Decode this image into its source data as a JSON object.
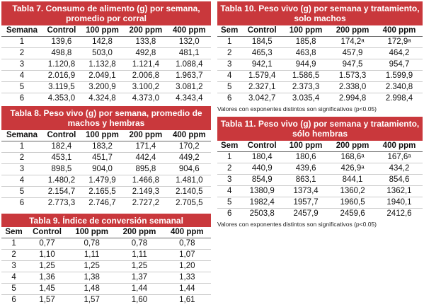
{
  "tables": [
    {
      "title": [
        "Tabla 7. Consumo de alimento (g) por semana,",
        "promedio por corral"
      ],
      "headers": [
        "Semana",
        "Control",
        "100 ppm",
        "200 ppm",
        "400 ppm"
      ],
      "rows": [
        [
          "1",
          "139,6",
          "142,8",
          "133,8",
          "132,0"
        ],
        [
          "2",
          "498,8",
          "503,0",
          "492,8",
          "481,1"
        ],
        [
          "3",
          "1.120,8",
          "1.132,8",
          "1.121,4",
          "1.088,4"
        ],
        [
          "4",
          "2.016,9",
          "2.049,1",
          "2.006,8",
          "1.963,7"
        ],
        [
          "5",
          "3.119,5",
          "3.200,9",
          "3.100,2",
          "3.081,2"
        ],
        [
          "6",
          "4.353,0",
          "4.324,8",
          "4.373,0",
          "4.343,4"
        ]
      ]
    },
    {
      "title": [
        "Tabla 8. Peso vivo (g) por semana, promedio de",
        "machos y hembras"
      ],
      "headers": [
        "Semana",
        "Control",
        "100 ppm",
        "200 ppm",
        "400 ppm"
      ],
      "rows": [
        [
          "1",
          "182,4",
          "183,2",
          "171,4",
          "170,2"
        ],
        [
          "2",
          "453,1",
          "451,7",
          "442,4",
          "449,2"
        ],
        [
          "3",
          "898,5",
          "904,0",
          "895,8",
          "904,6"
        ],
        [
          "4",
          "1.480,2",
          "1.479,9",
          "1.466,8",
          "1.481,0"
        ],
        [
          "5",
          "2.154,7",
          "2.165,5",
          "2.149,3",
          "2.140,5"
        ],
        [
          "6",
          "2.773,3",
          "2.746,7",
          "2.727,2",
          "2.705,5"
        ]
      ]
    },
    {
      "title": [
        "Tabla 9. Índice de conversión semanal"
      ],
      "headers": [
        "Sem",
        "Control",
        "100 ppm",
        "200 ppm",
        "400 ppm"
      ],
      "rows": [
        [
          "1",
          "0,77",
          "0,78",
          "0,78",
          "0,78"
        ],
        [
          "2",
          "1,10",
          "1,11",
          "1,11",
          "1,07"
        ],
        [
          "3",
          "1,25",
          "1,25",
          "1,25",
          "1,20"
        ],
        [
          "4",
          "1,36",
          "1,38",
          "1,37",
          "1,33"
        ],
        [
          "5",
          "1,45",
          "1,48",
          "1,44",
          "1,44"
        ],
        [
          "6",
          "1,57",
          "1,57",
          "1,60",
          "1,61"
        ]
      ]
    },
    {
      "title": [
        "Tabla 10. Peso vivo (g) por semana y tratamiento,",
        "solo machos"
      ],
      "headers": [
        "Sem",
        "Control",
        "100 ppm",
        "200 ppm",
        "400 ppm"
      ],
      "rows": [
        [
          "1",
          "184,5",
          "185,8",
          "174,2ᵃ",
          "172,9ᵃ"
        ],
        [
          "2",
          "465,3",
          "463,8",
          "457,9",
          "464,2"
        ],
        [
          "3",
          "942,1",
          "944,9",
          "947,5",
          "954,7"
        ],
        [
          "4",
          "1.579,4",
          "1.586,5",
          "1.573,3",
          "1.599,9"
        ],
        [
          "5",
          "2.327,1",
          "2.373,3",
          "2.338,0",
          "2.340,8"
        ],
        [
          "6",
          "3.042,7",
          "3.035,4",
          "2.994,8",
          "2.998,4"
        ]
      ],
      "note": "Valores con exponentes distintos son significativos (p<0.05)"
    },
    {
      "title": [
        "Tabla 11. Peso vivo (g) por semana y tratamiento,",
        "sólo hembras"
      ],
      "headers": [
        "Sem",
        "Control",
        "100 ppm",
        "200 ppm",
        "400 ppm"
      ],
      "rows": [
        [
          "1",
          "180,4",
          "180,6",
          "168,6ᵃ",
          "167,6ᵃ"
        ],
        [
          "2",
          "440,9",
          "439,6",
          "426,9ᵃ",
          "434,2"
        ],
        [
          "3",
          "854,9",
          "863,1",
          "844,1",
          "854,6"
        ],
        [
          "4",
          "1380,9",
          "1373,4",
          "1360,2",
          "1362,1"
        ],
        [
          "5",
          "1982,4",
          "1957,7",
          "1960,5",
          "1940,1"
        ],
        [
          "6",
          "2503,8",
          "2457,9",
          "2459,6",
          "2412,6"
        ]
      ],
      "note": "Valores con exponentes distintos son significativos (p<0.05)"
    }
  ]
}
